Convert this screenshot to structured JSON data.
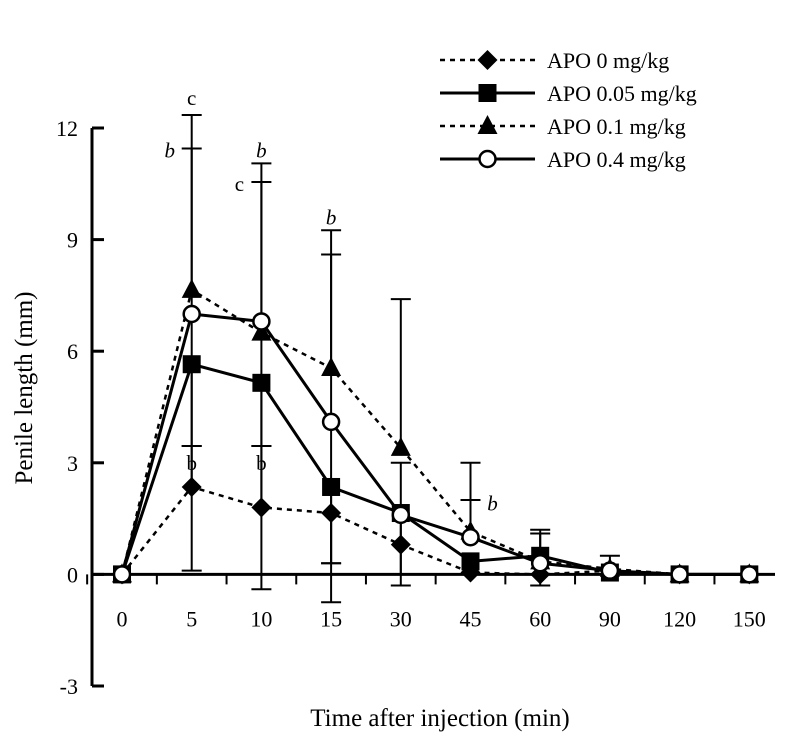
{
  "chart_data": {
    "type": "line",
    "title": "",
    "xlabel": "Time after injection (min)",
    "ylabel": "Penile length (mm)",
    "categories": [
      "0",
      "5",
      "10",
      "15",
      "30",
      "45",
      "60",
      "90",
      "120",
      "150"
    ],
    "ylim": [
      -3,
      12
    ],
    "yticks": [
      -3,
      0,
      3,
      6,
      9,
      12
    ],
    "yticks_labels": [
      "-3",
      "0",
      "3",
      "6",
      "9",
      "12"
    ],
    "grid": false,
    "legend_position": "top-right",
    "series": [
      {
        "name": "APO 0 mg/kg",
        "marker": "diamond",
        "line": "dotted",
        "values": [
          0,
          2.35,
          1.8,
          1.65,
          0.8,
          0.05,
          0.0,
          0.1,
          0,
          0
        ],
        "err_hi": [
          null,
          2.35,
          1.8,
          1.65,
          0.8,
          0.05,
          0.0,
          0.1,
          null,
          null
        ],
        "err_lo": [
          null,
          2.3,
          2.2,
          2.4,
          1.1,
          0.0,
          0.0,
          0.0,
          null,
          null
        ],
        "err_hi_val": [
          null,
          3.45,
          3.45,
          0.3,
          0.8,
          0.05,
          0.0,
          0.1,
          null,
          null
        ]
      },
      {
        "name": "APO 0.05 mg/kg",
        "marker": "square",
        "line": "solid",
        "values": [
          0,
          5.65,
          5.15,
          2.35,
          1.65,
          0.35,
          0.5,
          0.05,
          0,
          0
        ],
        "err_hi_val": [
          null,
          5.65,
          5.15,
          2.35,
          3.0,
          0.35,
          1.1,
          0.05,
          null,
          null
        ],
        "err_lo_val": [
          null,
          3.45,
          3.45,
          -0.75,
          0.0,
          0.35,
          -0.3,
          0.05,
          null,
          null
        ]
      },
      {
        "name": "APO 0.1 mg/kg",
        "marker": "triangle",
        "line": "dotted",
        "values": [
          0,
          7.65,
          6.5,
          5.55,
          3.4,
          1.15,
          0.35,
          0.15,
          0,
          0
        ],
        "err_hi_val": [
          null,
          12.35,
          11.05,
          9.25,
          7.4,
          3.0,
          1.2,
          0.5,
          null,
          null
        ],
        "err_lo_val": [
          null,
          7.65,
          6.5,
          5.55,
          3.4,
          1.15,
          0.35,
          0.15,
          null,
          null
        ]
      },
      {
        "name": "APO 0.4 mg/kg",
        "marker": "circle-open",
        "line": "solid",
        "values": [
          0,
          7.0,
          6.8,
          4.1,
          1.6,
          1.0,
          0.3,
          0.1,
          0,
          0
        ],
        "err_hi_val": [
          null,
          11.45,
          10.55,
          8.6,
          1.6,
          2.0,
          0.3,
          0.1,
          null,
          null
        ],
        "err_lo_val": [
          null,
          0.1,
          -0.4,
          0.3,
          -0.3,
          1.0,
          0.3,
          0.1,
          null,
          null
        ]
      }
    ],
    "annotations": [
      {
        "text": "c",
        "italic": false,
        "x": "5",
        "y": 12.8
      },
      {
        "text": "b",
        "italic": true,
        "x": "5",
        "y": 11.4
      },
      {
        "text": "b",
        "italic": false,
        "x": "5",
        "y": 3.0
      },
      {
        "text": "b",
        "italic": true,
        "x": "10",
        "y": 11.4
      },
      {
        "text": "c",
        "italic": false,
        "x": "10",
        "y": 10.5
      },
      {
        "text": "b",
        "italic": false,
        "x": "10",
        "y": 3.0
      },
      {
        "text": "b",
        "italic": true,
        "x": "15",
        "y": 9.6
      },
      {
        "text": "b",
        "italic": true,
        "x": "45",
        "y": 1.9
      }
    ]
  }
}
